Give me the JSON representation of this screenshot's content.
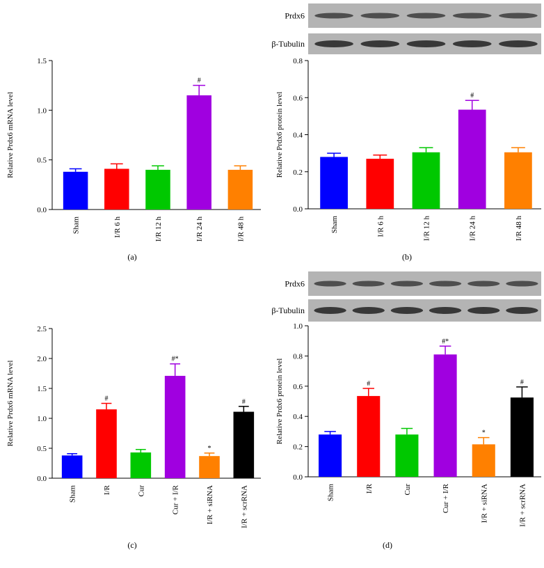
{
  "chart_data": [
    {
      "type": "bar",
      "caption": "(a)",
      "ylabel": "Relative Prdx6 mRNA level",
      "categories": [
        "Sham",
        "I/R 6 h",
        "I/R 12 h",
        "I/R 24 h",
        "I/R 48 h"
      ],
      "values": [
        0.38,
        0.41,
        0.4,
        1.15,
        0.4
      ],
      "errors": [
        0.03,
        0.05,
        0.04,
        0.1,
        0.04
      ],
      "marks": [
        null,
        null,
        null,
        "#",
        null
      ],
      "colors": [
        "#0000ff",
        "#ff0000",
        "#00c800",
        "#a000e0",
        "#ff8000"
      ],
      "ylim": [
        0,
        1.5
      ],
      "yticks": [
        {
          "value": 0,
          "label": "0.0"
        },
        0.5,
        {
          "value": 1,
          "label": "1.0"
        },
        1.5
      ]
    },
    {
      "type": "bar",
      "caption": "(b)",
      "ylabel": "Relative Prdx6 protein level",
      "blot_labels": [
        "Prdx6",
        "β-Tubulin"
      ],
      "categories": [
        "Sham",
        "I/R 6 h",
        "I/R 12 h",
        "I/R 24 h",
        "I/R 48 h"
      ],
      "values": [
        0.28,
        0.27,
        0.305,
        0.535,
        0.305
      ],
      "errors": [
        0.02,
        0.02,
        0.025,
        0.05,
        0.025
      ],
      "marks": [
        null,
        null,
        null,
        "#",
        null
      ],
      "colors": [
        "#0000ff",
        "#ff0000",
        "#00c800",
        "#a000e0",
        "#ff8000"
      ],
      "ylim": [
        0,
        0.8
      ],
      "yticks": [
        {
          "value": 0,
          "label": "0.0"
        },
        0.2,
        0.4,
        0.6,
        0.8
      ]
    },
    {
      "type": "bar",
      "caption": "(c)",
      "ylabel": "Relative Prdx6 mRNA level",
      "categories": [
        "Sham",
        "I/R",
        "Cur",
        "Cur + I/R",
        "I/R + siRNA",
        "I/R + scrRNA"
      ],
      "values": [
        0.38,
        1.15,
        0.43,
        1.71,
        0.37,
        1.11
      ],
      "errors": [
        0.03,
        0.1,
        0.05,
        0.2,
        0.05,
        0.09
      ],
      "marks": [
        null,
        "#",
        null,
        "#*",
        "*",
        "#"
      ],
      "colors": [
        "#0000ff",
        "#ff0000",
        "#00c800",
        "#a000e0",
        "#ff8000",
        "#000000"
      ],
      "ylim": [
        0,
        2.5
      ],
      "yticks": [
        {
          "value": 0,
          "label": "0.0"
        },
        0.5,
        {
          "value": 1,
          "label": "1.0"
        },
        1.5,
        {
          "value": 2,
          "label": "2.0"
        },
        2.5
      ]
    },
    {
      "type": "bar",
      "caption": "(d)",
      "ylabel": "Relative Prdx6 protein level",
      "blot_labels": [
        "Prdx6",
        "β-Tubulin"
      ],
      "categories": [
        "Sham",
        "I/R",
        "Cur",
        "Cur + I/R",
        "I/R + siRNA",
        "I/R + scrRNA"
      ],
      "values": [
        0.28,
        0.535,
        0.28,
        0.81,
        0.215,
        0.525
      ],
      "errors": [
        0.02,
        0.05,
        0.04,
        0.055,
        0.045,
        0.07
      ],
      "marks": [
        null,
        "#",
        null,
        "#*",
        "*",
        "#"
      ],
      "colors": [
        "#0000ff",
        "#ff0000",
        "#00c800",
        "#a000e0",
        "#ff8000",
        "#000000"
      ],
      "ylim": [
        0,
        1
      ],
      "yticks": [
        {
          "value": 0,
          "label": "0.0"
        },
        0.2,
        0.4,
        0.6,
        0.8,
        {
          "value": 1,
          "label": "1.0"
        }
      ]
    }
  ]
}
